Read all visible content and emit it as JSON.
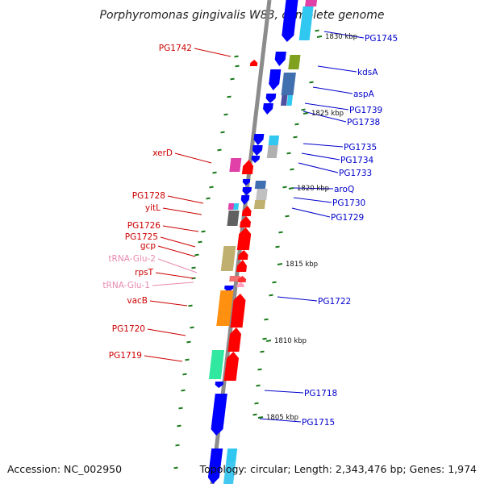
{
  "title": "Porphyromonas gingivalis W83, complete genome",
  "footer": {
    "accession": "Accession: NC_002950",
    "topology": "Topology: circular; Length: 2,343,476 bp; Genes: 1,974"
  },
  "colors": {
    "backbone": "#8c8c8c",
    "forward_label": "#cc0000",
    "reverse_label": "#0000cc",
    "trna_label": "#e88ab0",
    "tick": "#1a7a1a"
  },
  "ticks": [
    "1830 kbp",
    "1825 kbp",
    "1820 kbp",
    "1815 kbp",
    "1810 kbp",
    "1805 kbp"
  ],
  "left_labels": [
    {
      "text": "PG1742",
      "kind": "gene"
    },
    {
      "text": "xerD",
      "kind": "gene"
    },
    {
      "text": "PG1728",
      "kind": "gene"
    },
    {
      "text": "yitL",
      "kind": "gene"
    },
    {
      "text": "PG1726",
      "kind": "gene"
    },
    {
      "text": "PG1725",
      "kind": "gene"
    },
    {
      "text": "gcp",
      "kind": "gene"
    },
    {
      "text": "tRNA-Glu-2",
      "kind": "trna"
    },
    {
      "text": "rpsT",
      "kind": "gene"
    },
    {
      "text": "tRNA-Glu-1",
      "kind": "trna"
    },
    {
      "text": "vacB",
      "kind": "gene"
    },
    {
      "text": "PG1720",
      "kind": "gene"
    },
    {
      "text": "PG1719",
      "kind": "gene"
    }
  ],
  "right_labels": [
    {
      "text": "PG1745"
    },
    {
      "text": "kdsA"
    },
    {
      "text": "aspA"
    },
    {
      "text": "PG1739"
    },
    {
      "text": "PG1738"
    },
    {
      "text": "PG1735"
    },
    {
      "text": "PG1734"
    },
    {
      "text": "PG1733"
    },
    {
      "text": "aroQ"
    },
    {
      "text": "PG1730"
    },
    {
      "text": "PG1729"
    },
    {
      "text": "PG1722"
    },
    {
      "text": "PG1718"
    },
    {
      "text": "PG1715"
    }
  ]
}
